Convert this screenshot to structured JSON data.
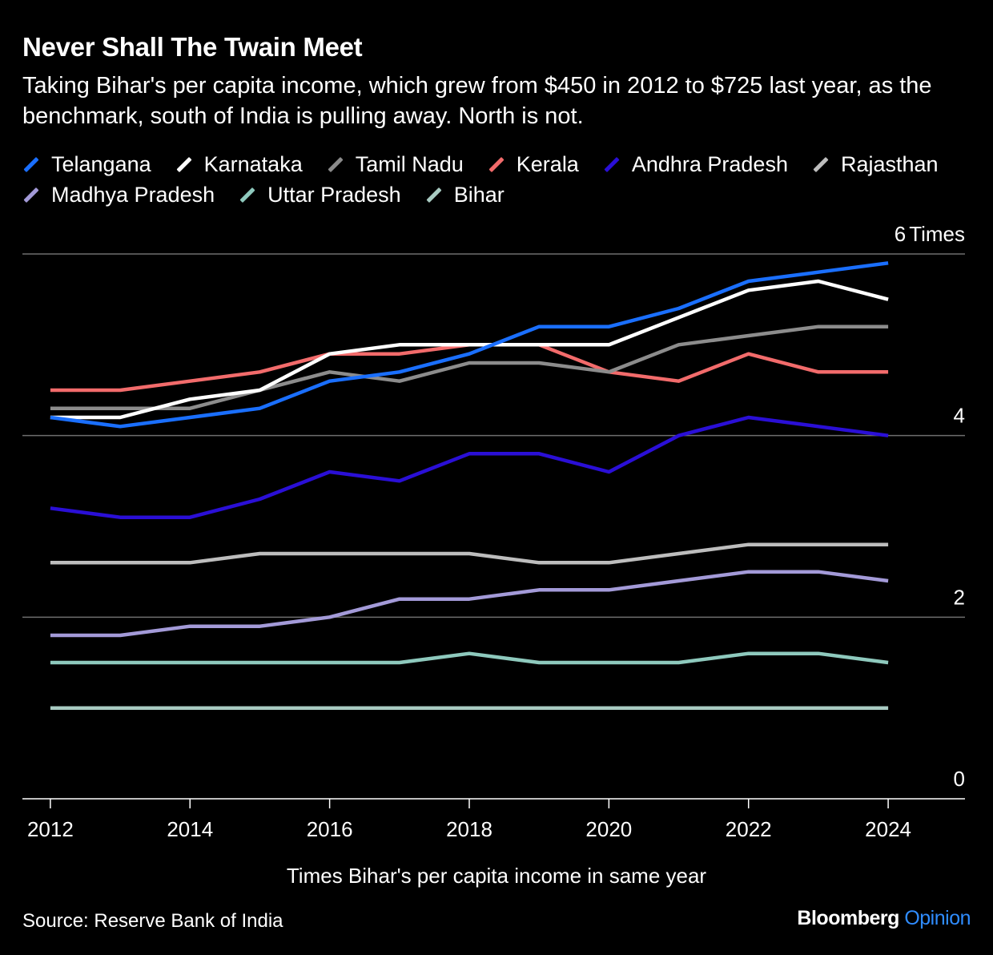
{
  "title": "Never Shall The Twain Meet",
  "subtitle": "Taking Bihar's per capita income, which grew from $450 in 2012 to $725 last year, as the benchmark, south of India is pulling away. North is not.",
  "source": "Source: Reserve Bank of India",
  "brand": {
    "name": "Bloomberg",
    "suffix": "Opinion"
  },
  "chart_data": {
    "type": "line",
    "title": "Never Shall The Twain Meet",
    "xlabel": "Times Bihar's per capita income in same year",
    "ylabel": "",
    "y_unit_label": "Times",
    "x": [
      2012,
      2013,
      2014,
      2015,
      2016,
      2017,
      2018,
      2019,
      2020,
      2021,
      2022,
      2023,
      2024
    ],
    "x_ticks": [
      2012,
      2014,
      2016,
      2018,
      2020,
      2022,
      2024
    ],
    "xlim": [
      2011.6,
      2025.1
    ],
    "ylim": [
      0,
      6
    ],
    "y_ticks": [
      0,
      2,
      4,
      6
    ],
    "grid": true,
    "legend_position": "top",
    "series": [
      {
        "name": "Telangana",
        "color": "#1a6fff",
        "values": [
          4.2,
          4.1,
          4.2,
          4.3,
          4.6,
          4.7,
          4.9,
          5.2,
          5.2,
          5.4,
          5.7,
          5.8,
          5.9
        ]
      },
      {
        "name": "Karnataka",
        "color": "#ffffff",
        "values": [
          4.2,
          4.2,
          4.4,
          4.5,
          4.9,
          5.0,
          5.0,
          5.0,
          5.0,
          5.3,
          5.6,
          5.7,
          5.5
        ]
      },
      {
        "name": "Tamil Nadu",
        "color": "#8c8c8c",
        "values": [
          4.3,
          4.3,
          4.3,
          4.5,
          4.7,
          4.6,
          4.8,
          4.8,
          4.7,
          5.0,
          5.1,
          5.2,
          5.2
        ]
      },
      {
        "name": "Kerala",
        "color": "#f26b6b",
        "values": [
          4.5,
          4.5,
          4.6,
          4.7,
          4.9,
          4.9,
          5.0,
          5.0,
          4.7,
          4.6,
          4.9,
          4.7,
          4.7
        ]
      },
      {
        "name": "Andhra Pradesh",
        "color": "#2a0fd6",
        "values": [
          3.2,
          3.1,
          3.1,
          3.3,
          3.6,
          3.5,
          3.8,
          3.8,
          3.6,
          4.0,
          4.2,
          4.1,
          4.0
        ]
      },
      {
        "name": "Rajasthan",
        "color": "#bdbdbd",
        "values": [
          2.6,
          2.6,
          2.6,
          2.7,
          2.7,
          2.7,
          2.7,
          2.6,
          2.6,
          2.7,
          2.8,
          2.8,
          2.8
        ]
      },
      {
        "name": "Madhya Pradesh",
        "color": "#a39ad8",
        "values": [
          1.8,
          1.8,
          1.9,
          1.9,
          2.0,
          2.2,
          2.2,
          2.3,
          2.3,
          2.4,
          2.5,
          2.5,
          2.4
        ]
      },
      {
        "name": "Uttar Pradesh",
        "color": "#8ec9bd",
        "values": [
          1.5,
          1.5,
          1.5,
          1.5,
          1.5,
          1.5,
          1.6,
          1.5,
          1.5,
          1.5,
          1.6,
          1.6,
          1.5
        ]
      },
      {
        "name": "Bihar",
        "color": "#a9cbc2",
        "values": [
          1.0,
          1.0,
          1.0,
          1.0,
          1.0,
          1.0,
          1.0,
          1.0,
          1.0,
          1.0,
          1.0,
          1.0,
          1.0
        ]
      }
    ]
  }
}
